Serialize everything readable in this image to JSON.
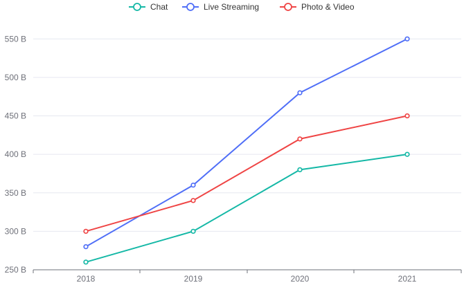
{
  "chart_data": {
    "type": "line",
    "categories": [
      "2018",
      "2019",
      "2020",
      "2021"
    ],
    "series": [
      {
        "name": "Chat",
        "values": [
          260,
          300,
          380,
          400
        ],
        "color": "#14b8a6"
      },
      {
        "name": "Live Streaming",
        "values": [
          280,
          360,
          480,
          550
        ],
        "color": "#4f6ef7"
      },
      {
        "name": "Photo & Video",
        "values": [
          300,
          340,
          420,
          450
        ],
        "color": "#ef4444"
      }
    ],
    "y_ticks": [
      "250 B",
      "300 B",
      "350 B",
      "400 B",
      "450 B",
      "500 B",
      "550 B"
    ],
    "ylim": [
      250,
      570
    ],
    "grid": true,
    "legend_position": "top-center",
    "title": "",
    "xlabel": "",
    "ylabel": ""
  }
}
